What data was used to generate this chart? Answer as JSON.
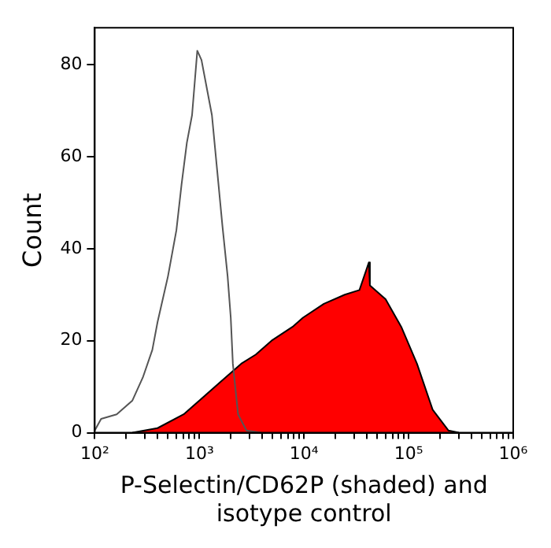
{
  "chart_data": {
    "type": "line",
    "xlabel": "P-Selectin/CD62P (shaded) and isotype control",
    "ylabel": "Count",
    "log": "x",
    "xlim": [
      100,
      1000000
    ],
    "ylim": [
      0,
      88
    ],
    "xticks": [
      {
        "value": 100,
        "label": "10²"
      },
      {
        "value": 200,
        "label": null
      },
      {
        "value": 300,
        "label": null
      },
      {
        "value": 400,
        "label": null
      },
      {
        "value": 500,
        "label": null
      },
      {
        "value": 600,
        "label": null
      },
      {
        "value": 700,
        "label": null
      },
      {
        "value": 800,
        "label": null
      },
      {
        "value": 900,
        "label": null
      },
      {
        "value": 1000,
        "label": "10³"
      },
      {
        "value": 2000,
        "label": null
      },
      {
        "value": 3000,
        "label": null
      },
      {
        "value": 4000,
        "label": null
      },
      {
        "value": 5000,
        "label": null
      },
      {
        "value": 6000,
        "label": null
      },
      {
        "value": 7000,
        "label": null
      },
      {
        "value": 8000,
        "label": null
      },
      {
        "value": 9000,
        "label": null
      },
      {
        "value": 10000,
        "label": "10⁴"
      },
      {
        "value": 20000,
        "label": null
      },
      {
        "value": 30000,
        "label": null
      },
      {
        "value": 40000,
        "label": null
      },
      {
        "value": 50000,
        "label": null
      },
      {
        "value": 60000,
        "label": null
      },
      {
        "value": 70000,
        "label": null
      },
      {
        "value": 80000,
        "label": null
      },
      {
        "value": 90000,
        "label": null
      },
      {
        "value": 100000,
        "label": "10⁵"
      },
      {
        "value": 200000,
        "label": null
      },
      {
        "value": 300000,
        "label": null
      },
      {
        "value": 400000,
        "label": null
      },
      {
        "value": 500000,
        "label": null
      },
      {
        "value": 600000,
        "label": null
      },
      {
        "value": 700000,
        "label": null
      },
      {
        "value": 800000,
        "label": null
      },
      {
        "value": 900000,
        "label": null
      },
      {
        "value": 1000000,
        "label": "10⁶"
      }
    ],
    "yticks": [
      0,
      20,
      40,
      60,
      80
    ],
    "grid": false,
    "legend": false,
    "series": [
      {
        "type": "area",
        "color": "#ff0000",
        "x": [
          229,
          398,
          708,
          1000,
          1585,
          2512,
          3467,
          4898,
          7762,
          9772,
          15488,
          24547,
          33884,
          41687,
          42658,
          60256,
          85114,
          120226,
          169824,
          239883,
          301995
        ],
        "values": [
          0,
          1,
          4,
          7,
          11,
          15,
          17,
          20,
          23,
          25,
          28,
          30,
          31,
          37,
          32,
          29,
          23,
          15,
          5,
          0.5,
          0
        ]
      },
      {
        "color": "#555555",
        "x": [
          100,
          115,
          162,
          229,
          288,
          355,
          398,
          501,
          603,
          676,
          759,
          851,
          955,
          1047,
          1175,
          1318,
          1479,
          1660,
          1862,
          1995,
          2089,
          2344,
          2818,
          3890
        ],
        "values": [
          0.5,
          3,
          4,
          7,
          12,
          18,
          24,
          34,
          44,
          54,
          63,
          69,
          83,
          81,
          75,
          69,
          57,
          45,
          34,
          25,
          15,
          4,
          0.5,
          0
        ]
      }
    ]
  }
}
